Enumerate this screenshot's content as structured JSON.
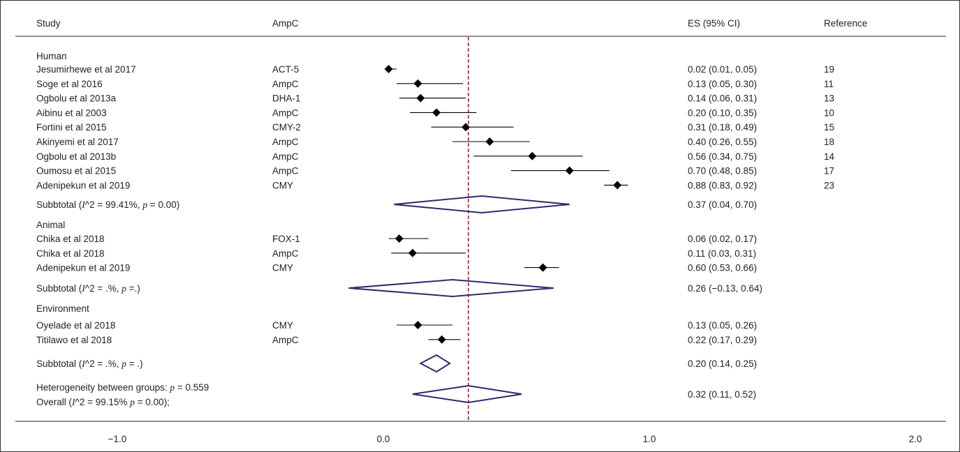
{
  "chart_data": {
    "type": "forest",
    "headers": {
      "study": "Study",
      "ampc": "AmpC",
      "es": "ES (95% CI)",
      "reference": "Reference"
    },
    "xlim": [
      -1.3,
      2.1
    ],
    "x_ticks": [
      {
        "value": -1.0,
        "label": "−1.0"
      },
      {
        "value": 0.0,
        "label": "0.0"
      },
      {
        "value": 1.0,
        "label": "1.0"
      },
      {
        "value": 2.0,
        "label": "2.0"
      }
    ],
    "reference_line": 0.32,
    "groups": [
      {
        "name": "Human",
        "studies": [
          {
            "study": "Jesumirhewe et al 2017",
            "ampc": "ACT-5",
            "es": 0.02,
            "lo": 0.01,
            "hi": 0.05,
            "ci_text": "0.02 (0.01, 0.05)",
            "ref": "19"
          },
          {
            "study": "Soge et al  2016",
            "ampc": "AmpC",
            "es": 0.13,
            "lo": 0.05,
            "hi": 0.3,
            "ci_text": "0.13 (0.05, 0.30)",
            "ref": "11"
          },
          {
            "study": "Ogbolu et al 2013a",
            "ampc": "DHA-1",
            "es": 0.14,
            "lo": 0.06,
            "hi": 0.31,
            "ci_text": "0.14 (0.06, 0.31)",
            "ref": "13"
          },
          {
            "study": "Aibinu et al 2003",
            "ampc": "AmpC",
            "es": 0.2,
            "lo": 0.1,
            "hi": 0.35,
            "ci_text": "0.20 (0.10, 0.35)",
            "ref": "10"
          },
          {
            "study": "Fortini et al 2015",
            "ampc": "CMY-2",
            "es": 0.31,
            "lo": 0.18,
            "hi": 0.49,
            "ci_text": "0.31 (0.18, 0.49)",
            "ref": "15"
          },
          {
            "study": "Akinyemi et al 2017",
            "ampc": "AmpC",
            "es": 0.4,
            "lo": 0.26,
            "hi": 0.55,
            "ci_text": "0.40 (0.26, 0.55)",
            "ref": "18"
          },
          {
            "study": "Ogbolu et al 2013b",
            "ampc": "AmpC",
            "es": 0.56,
            "lo": 0.34,
            "hi": 0.75,
            "ci_text": "0.56 (0.34, 0.75)",
            "ref": "14"
          },
          {
            "study": "Oumosu et al 2015",
            "ampc": "AmpC",
            "es": 0.7,
            "lo": 0.48,
            "hi": 0.85,
            "ci_text": "0.70 (0.48, 0.85)",
            "ref": "17"
          },
          {
            "study": "Adenipekun et al 2019",
            "ampc": "CMY",
            "es": 0.88,
            "lo": 0.83,
            "hi": 0.92,
            "ci_text": "0.88 (0.83, 0.92)",
            "ref": "23"
          }
        ],
        "subtotal": {
          "label_pre": "Subbtotal (",
          "label_stat": "I^2 = 99.41%, ",
          "label_p": "p",
          "label_post": " = 0.00)",
          "es": 0.37,
          "lo": 0.04,
          "hi": 0.7,
          "ci_text": "0.37 (0.04, 0.70)"
        }
      },
      {
        "name": "Animal",
        "studies": [
          {
            "study": "Chika et al 2018",
            "ampc": "FOX-1",
            "es": 0.06,
            "lo": 0.02,
            "hi": 0.17,
            "ci_text": "0.06 (0.02, 0.17)",
            "ref": ""
          },
          {
            "study": "Chika et al 2018",
            "ampc": "AmpC",
            "es": 0.11,
            "lo": 0.03,
            "hi": 0.31,
            "ci_text": "0.11 (0.03, 0.31)",
            "ref": ""
          },
          {
            "study": "Adenipekun et al 2019",
            "ampc": "CMY",
            "es": 0.6,
            "lo": 0.53,
            "hi": 0.66,
            "ci_text": "0.60 (0.53, 0.66)",
            "ref": ""
          }
        ],
        "subtotal": {
          "label_pre": "Subbtotal (",
          "label_stat": "I^2 = .%, ",
          "label_p": "p",
          "label_post": " =.)",
          "es": 0.26,
          "lo": -0.13,
          "hi": 0.64,
          "ci_text": "0.26 (−0.13, 0.64)"
        }
      },
      {
        "name": "Environment",
        "studies": [
          {
            "study": "Oyelade et al 2018",
            "ampc": "CMY",
            "es": 0.13,
            "lo": 0.05,
            "hi": 0.26,
            "ci_text": "0.13 (0.05, 0.26)",
            "ref": ""
          },
          {
            "study": "Titilawo et al 2018",
            "ampc": "AmpC",
            "es": 0.22,
            "lo": 0.17,
            "hi": 0.29,
            "ci_text": "0.22 (0.17, 0.29)",
            "ref": ""
          }
        ],
        "subtotal": {
          "label_pre": "Subbtotal (",
          "label_stat": "I^2 = .%, ",
          "label_p": "p",
          "label_post": " = .)",
          "es": 0.2,
          "lo": 0.14,
          "hi": 0.25,
          "ci_text": "0.20 (0.14, 0.25)"
        }
      }
    ],
    "heterogeneity": {
      "pre": "Heterogeneity between groups: ",
      "p": "p",
      "post": " = 0.559"
    },
    "overall": {
      "label_pre": "Overall (",
      "label_stat": "I^2 = 99.15% ",
      "label_p": "p",
      "label_post": " = 0.00);",
      "es": 0.32,
      "lo": 0.11,
      "hi": 0.52,
      "ci_text": "0.32 (0.11, 0.52)"
    },
    "colors": {
      "diamond": "#2b2b6e",
      "reference_line": "#a0524e",
      "marker": "#000000"
    }
  }
}
